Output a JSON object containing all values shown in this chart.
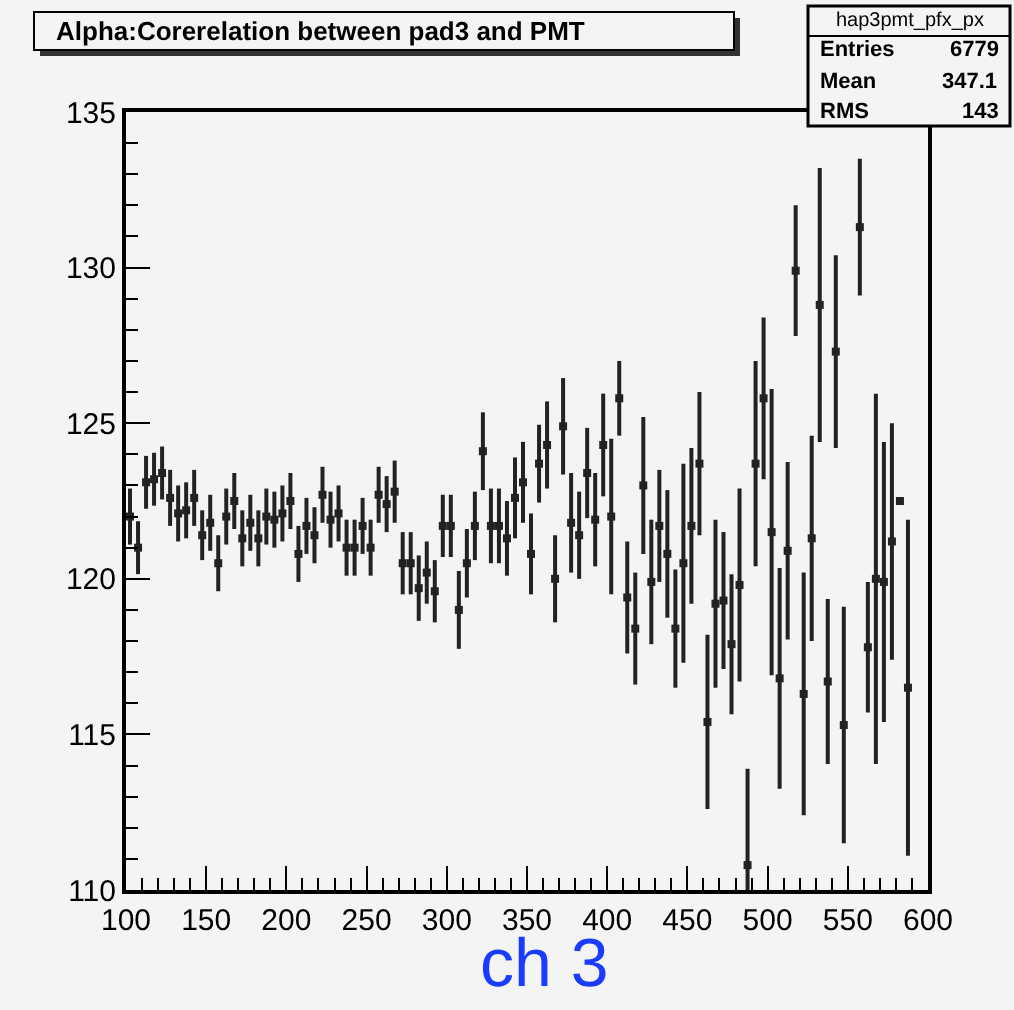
{
  "chart_data": {
    "type": "scatter",
    "title": "Alpha:Corerelation between pad3 and PMT",
    "xlabel": "ch 3",
    "annotations": [
      "hap3pmt_pfx_px",
      "Entries 6779",
      "Mean 347.1",
      "RMS 143"
    ],
    "x": [
      102.5,
      107.5,
      112.5,
      117.5,
      122.5,
      127.5,
      132.5,
      137.5,
      142.5,
      147.5,
      152.5,
      157.5,
      162.5,
      167.5,
      172.5,
      177.5,
      182.5,
      187.5,
      192.5,
      197.5,
      202.5,
      207.5,
      212.5,
      217.5,
      222.5,
      227.5,
      232.5,
      237.5,
      242.5,
      247.5,
      252.5,
      257.5,
      262.5,
      267.5,
      272.5,
      277.5,
      282.5,
      287.5,
      292.5,
      297.5,
      302.5,
      307.5,
      312.5,
      317.5,
      322.5,
      327.5,
      332.5,
      337.5,
      342.5,
      347.5,
      352.5,
      357.5,
      362.5,
      367.5,
      372.5,
      377.5,
      382.5,
      387.5,
      392.5,
      397.5,
      402.5,
      407.5,
      412.5,
      417.5,
      422.5,
      427.5,
      432.5,
      437.5,
      442.5,
      447.5,
      452.5,
      457.5,
      462.5,
      467.5,
      472.5,
      477.5,
      482.5,
      487.5,
      492.5,
      497.5,
      502.5,
      507.5,
      512.5,
      517.5,
      522.5,
      527.5,
      532.5,
      537.5,
      542.5,
      547.5,
      552.5,
      557.5,
      562.5,
      567.5,
      572.5,
      577.5,
      582.5,
      587.5
    ],
    "series": [
      {
        "color": "#222222",
        "values": [
          122.0,
          121.0,
          123.1,
          123.2,
          123.4,
          122.6,
          122.1,
          122.2,
          122.6,
          121.4,
          121.8,
          120.5,
          122.0,
          122.5,
          121.3,
          121.8,
          121.3,
          122.0,
          121.9,
          122.1,
          122.5,
          120.8,
          121.7,
          121.4,
          122.7,
          121.9,
          122.1,
          121.0,
          121.0,
          121.7,
          121.0,
          122.7,
          122.4,
          122.8,
          120.5,
          120.5,
          119.7,
          120.2,
          119.6,
          121.7,
          121.7,
          119.0,
          120.5,
          121.7,
          124.1,
          121.7,
          121.7,
          121.3,
          122.6,
          123.1,
          120.8,
          123.7,
          124.3,
          120.0,
          124.9,
          121.8,
          121.4,
          123.4,
          121.9,
          124.3,
          122.0,
          125.8,
          119.4,
          118.4,
          123.0,
          119.9,
          121.7,
          120.8,
          118.4,
          120.5,
          121.7,
          123.7,
          115.4,
          119.2,
          119.3,
          117.9,
          119.8,
          110.8,
          123.7,
          125.8,
          121.5,
          116.8,
          120.9,
          129.9,
          116.3,
          121.3,
          128.8,
          116.7,
          127.3,
          115.3,
          null,
          131.3,
          117.8,
          120.0,
          119.9,
          121.2,
          122.5,
          116.5
        ],
        "errors": [
          0.9,
          0.85,
          0.85,
          0.85,
          0.85,
          0.9,
          0.9,
          0.9,
          0.9,
          0.8,
          0.9,
          0.9,
          0.9,
          0.9,
          0.9,
          0.9,
          0.9,
          0.9,
          0.9,
          0.9,
          0.9,
          0.9,
          0.9,
          0.9,
          0.9,
          0.9,
          0.9,
          0.9,
          0.9,
          0.9,
          0.9,
          0.9,
          0.9,
          1.0,
          1.0,
          1.0,
          1.05,
          1.0,
          1.0,
          1.0,
          1.0,
          1.25,
          1.1,
          1.1,
          1.25,
          1.2,
          1.2,
          1.2,
          1.3,
          1.3,
          1.3,
          1.25,
          1.4,
          1.4,
          1.55,
          1.6,
          1.4,
          1.45,
          1.5,
          1.65,
          2.5,
          1.2,
          1.8,
          1.8,
          2.2,
          2.0,
          1.8,
          2.05,
          1.9,
          3.2,
          2.5,
          2.3,
          2.8,
          2.7,
          2.2,
          2.25,
          3.1,
          3.1,
          3.3,
          2.6,
          4.6,
          3.55,
          2.85,
          2.1,
          3.9,
          3.3,
          4.4,
          2.65,
          3.1,
          3.8,
          null,
          2.2,
          2.1,
          5.95,
          4.5,
          3.8,
          0,
          5.4
        ]
      }
    ],
    "xlim": [
      100,
      600
    ],
    "xticks": [
      100,
      150,
      200,
      250,
      300,
      350,
      400,
      450,
      500,
      550,
      600
    ],
    "ylim": [
      110,
      135
    ],
    "yticks": [
      110,
      115,
      120,
      125,
      130,
      135
    ],
    "grid": false,
    "marker": "square"
  }
}
